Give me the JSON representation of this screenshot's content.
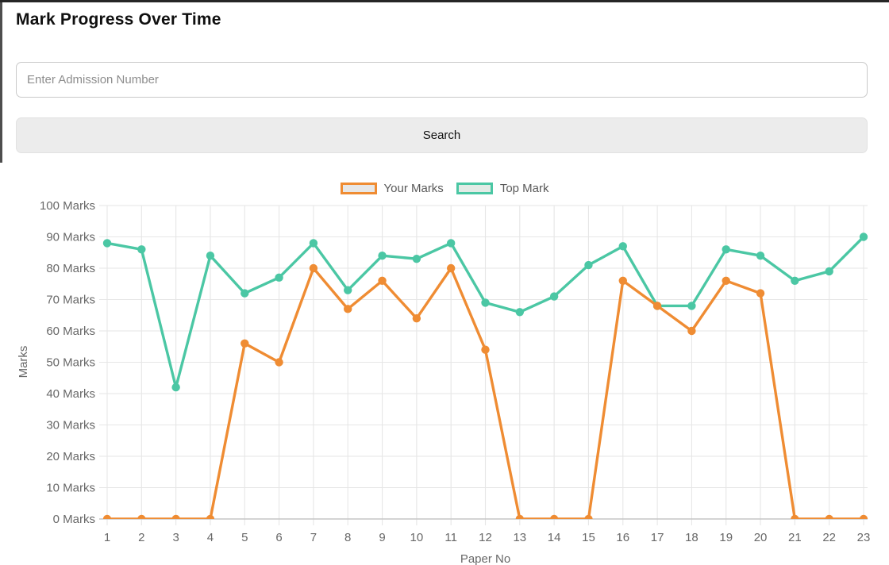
{
  "page": {
    "title": "Mark Progress Over Time"
  },
  "search": {
    "placeholder": "Enter Admission Number",
    "button_label": "Search"
  },
  "chart_data": {
    "type": "line",
    "title": "",
    "xlabel": "Paper No",
    "ylabel": "Marks",
    "ylim": [
      0,
      100
    ],
    "ytick_step": 10,
    "ytick_suffix": " Marks",
    "grid": true,
    "legend_position": "top",
    "x": [
      1,
      2,
      3,
      4,
      5,
      6,
      7,
      8,
      9,
      10,
      11,
      12,
      13,
      14,
      15,
      16,
      17,
      18,
      19,
      20,
      21,
      22,
      23
    ],
    "series": [
      {
        "name": "Your Marks",
        "color": "#EF8C33",
        "legend_fill": "#E7E7E7",
        "values": [
          0,
          0,
          0,
          0,
          56,
          50,
          80,
          67,
          76,
          64,
          80,
          54,
          0,
          0,
          0,
          76,
          68,
          60,
          76,
          72,
          0,
          0,
          0
        ]
      },
      {
        "name": "Top Mark",
        "color": "#4BC7A4",
        "legend_fill": "#E2EBE6",
        "values": [
          88,
          86,
          42,
          84,
          72,
          77,
          88,
          73,
          84,
          83,
          88,
          69,
          66,
          71,
          81,
          87,
          68,
          68,
          86,
          84,
          76,
          79,
          90
        ]
      }
    ],
    "colors": {
      "grid_line": "#E6E6E6",
      "axis_line": "#C6C6C6",
      "tick_text": "#686868"
    }
  }
}
